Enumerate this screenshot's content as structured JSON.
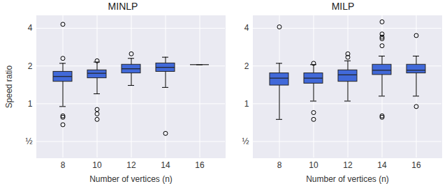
{
  "chart_data": [
    {
      "type": "box",
      "title": "MINLP",
      "x_label": "Number of vertices (n)",
      "y_label": "Speed ratio",
      "categories": [
        8,
        10,
        12,
        14,
        16
      ],
      "color": "#4169d9",
      "log": "y",
      "grid": true,
      "ylim": [
        0.37,
        5.04
      ],
      "yticks": [
        {
          "value": 0.5,
          "label": "½"
        },
        1,
        2,
        4
      ],
      "boxes": [
        {
          "whisker_low": 0.95,
          "q1": 1.5,
          "median": 1.65,
          "q3": 1.8,
          "whisker_high": 2.1,
          "outliers": [
            4.3,
            2.3,
            0.8,
            0.78,
            0.68
          ]
        },
        {
          "whisker_low": 1.2,
          "q1": 1.6,
          "median": 1.75,
          "q3": 1.85,
          "whisker_high": 2.15,
          "outliers": [
            2.2,
            0.9,
            0.83,
            0.75
          ]
        },
        {
          "whisker_low": 1.4,
          "q1": 1.75,
          "median": 1.9,
          "q3": 2.05,
          "whisker_high": 2.3,
          "outliers": [
            2.5
          ]
        },
        {
          "whisker_low": 1.35,
          "q1": 1.8,
          "median": 1.95,
          "q3": 2.1,
          "whisker_high": 2.35,
          "outliers": [
            0.58
          ]
        },
        {
          "whisker_low": 2.05,
          "q1": 2.05,
          "median": 2.05,
          "q3": 2.05,
          "whisker_high": 2.05,
          "outliers": []
        }
      ]
    },
    {
      "type": "box",
      "title": "MILP",
      "x_label": "Number of vertices (n)",
      "categories": [
        8,
        10,
        12,
        14,
        16
      ],
      "color": "#4169d9",
      "log": "y",
      "grid": true,
      "ylim": [
        0.37,
        5.04
      ],
      "yticks": [
        {
          "value": 0.5,
          "label": "½"
        },
        1,
        2,
        4
      ],
      "boxes": [
        {
          "whisker_low": 0.75,
          "q1": 1.4,
          "median": 1.6,
          "q3": 1.75,
          "whisker_high": 2.1,
          "outliers": [
            4.1
          ]
        },
        {
          "whisker_low": 1.05,
          "q1": 1.45,
          "median": 1.6,
          "q3": 1.75,
          "whisker_high": 2.05,
          "outliers": [
            2.1,
            0.85,
            0.75
          ]
        },
        {
          "whisker_low": 1.05,
          "q1": 1.5,
          "median": 1.7,
          "q3": 1.85,
          "whisker_high": 2.2,
          "outliers": [
            2.5,
            2.35
          ]
        },
        {
          "whisker_low": 1.15,
          "q1": 1.7,
          "median": 1.85,
          "q3": 2.05,
          "whisker_high": 2.4,
          "outliers": [
            4.5,
            3.6,
            3.4,
            3.3,
            2.9,
            0.8,
            0.78
          ]
        },
        {
          "whisker_low": 1.15,
          "q1": 1.75,
          "median": 1.85,
          "q3": 2.05,
          "whisker_high": 2.4,
          "outliers": [
            3.5,
            0.95
          ]
        }
      ]
    }
  ]
}
